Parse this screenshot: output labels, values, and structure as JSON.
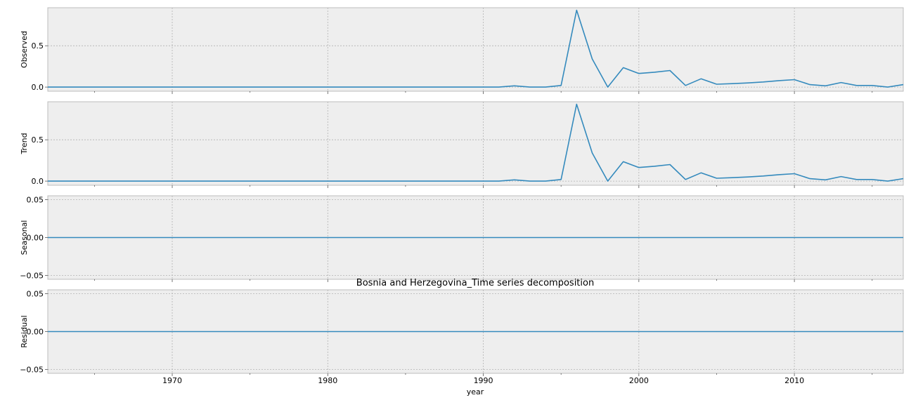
{
  "chart_data": {
    "type": "line",
    "title": "Bosnia and Herzegovina_Time series decomposition",
    "xlabel": "year",
    "xlim": [
      1962,
      2017
    ],
    "x_ticks": [
      1970,
      1980,
      1990,
      2000,
      2010
    ],
    "x_tick_labels": [
      "1970",
      "1980",
      "1990",
      "2000",
      "2010"
    ],
    "x": [
      1962,
      1963,
      1964,
      1965,
      1966,
      1967,
      1968,
      1969,
      1970,
      1971,
      1972,
      1973,
      1974,
      1975,
      1976,
      1977,
      1978,
      1979,
      1980,
      1981,
      1982,
      1983,
      1984,
      1985,
      1986,
      1987,
      1988,
      1989,
      1990,
      1991,
      1992,
      1993,
      1994,
      1995,
      1996,
      1997,
      1998,
      1999,
      2000,
      2001,
      2002,
      2003,
      2004,
      2005,
      2006,
      2007,
      2008,
      2009,
      2010,
      2011,
      2012,
      2013,
      2014,
      2015,
      2016,
      2017
    ],
    "line_color": "#348abd",
    "grid": true,
    "panels": [
      {
        "ylabel": "Observed",
        "ylim": [
          -0.05,
          0.96
        ],
        "y_ticks": [
          0.0,
          0.5
        ],
        "y_tick_labels": [
          "0.0",
          "0.5"
        ],
        "values": [
          0,
          0,
          0,
          0,
          0,
          0,
          0,
          0,
          0,
          0,
          0,
          0,
          0,
          0,
          0,
          0,
          0,
          0,
          0,
          0,
          0,
          0,
          0,
          0,
          0,
          0,
          0,
          0,
          0,
          0,
          0.015,
          0,
          0,
          0.02,
          0.93,
          0.34,
          0,
          0.235,
          0.165,
          0.18,
          0.2,
          0.02,
          0.1,
          0.035,
          0.042,
          0.05,
          0.062,
          0.078,
          0.09,
          0.03,
          0.015,
          0.055,
          0.02,
          0.02,
          0,
          0.03
        ]
      },
      {
        "ylabel": "Trend",
        "ylim": [
          -0.05,
          0.96
        ],
        "y_ticks": [
          0.0,
          0.5
        ],
        "y_tick_labels": [
          "0.0",
          "0.5"
        ],
        "values": [
          0,
          0,
          0,
          0,
          0,
          0,
          0,
          0,
          0,
          0,
          0,
          0,
          0,
          0,
          0,
          0,
          0,
          0,
          0,
          0,
          0,
          0,
          0,
          0,
          0,
          0,
          0,
          0,
          0,
          0,
          0.015,
          0,
          0,
          0.02,
          0.93,
          0.34,
          0,
          0.235,
          0.165,
          0.18,
          0.2,
          0.02,
          0.1,
          0.035,
          0.042,
          0.05,
          0.062,
          0.078,
          0.09,
          0.03,
          0.015,
          0.055,
          0.02,
          0.02,
          0,
          0.03
        ]
      },
      {
        "ylabel": "Seasonal",
        "ylim": [
          -0.055,
          0.055
        ],
        "y_ticks": [
          0.05,
          0.0,
          -0.05
        ],
        "y_tick_labels": [
          "0.05",
          "0.00",
          "−0.05"
        ],
        "values": [
          0,
          0,
          0,
          0,
          0,
          0,
          0,
          0,
          0,
          0,
          0,
          0,
          0,
          0,
          0,
          0,
          0,
          0,
          0,
          0,
          0,
          0,
          0,
          0,
          0,
          0,
          0,
          0,
          0,
          0,
          0,
          0,
          0,
          0,
          0,
          0,
          0,
          0,
          0,
          0,
          0,
          0,
          0,
          0,
          0,
          0,
          0,
          0,
          0,
          0,
          0,
          0,
          0,
          0,
          0,
          0
        ]
      },
      {
        "ylabel": "Residual",
        "ylim": [
          -0.055,
          0.055
        ],
        "y_ticks": [
          0.05,
          0.0,
          -0.05
        ],
        "y_tick_labels": [
          "0.05",
          "0.00",
          "−0.05"
        ],
        "values": [
          0,
          0,
          0,
          0,
          0,
          0,
          0,
          0,
          0,
          0,
          0,
          0,
          0,
          0,
          0,
          0,
          0,
          0,
          0,
          0,
          0,
          0,
          0,
          0,
          0,
          0,
          0,
          0,
          0,
          0,
          0,
          0,
          0,
          0,
          0,
          0,
          0,
          0,
          0,
          0,
          0,
          0,
          0,
          0,
          0,
          0,
          0,
          0,
          0,
          0,
          0,
          0,
          0,
          0,
          0,
          0
        ]
      }
    ]
  }
}
